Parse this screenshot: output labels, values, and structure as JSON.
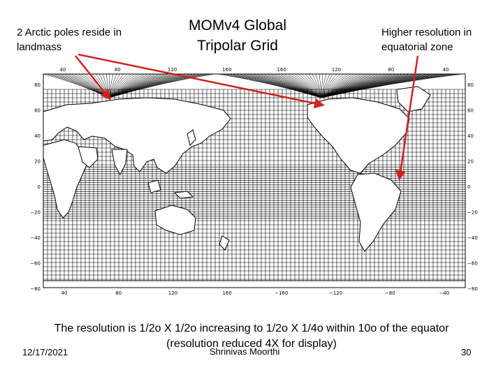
{
  "slide": {
    "title": "MOMv4 Global Tripolar Grid",
    "annotation_left": "2 Arctic poles reside in landmass",
    "annotation_right": "Higher resolution in equatorial zone",
    "caption_line1": "The resolution is 1/2o X 1/2o increasing to 1/2o X 1/4o within 10o of the equator",
    "caption_line2": "(resolution reduced 4X for display)",
    "footer": {
      "date": "12/17/2021",
      "author": "Shrinivas Moorthi",
      "page_number": "30"
    }
  },
  "map": {
    "top_ticks": [
      "40",
      "80",
      "120",
      "160",
      "160",
      "120",
      "80",
      "40"
    ],
    "bottom_ticks": [
      "40",
      "80",
      "120",
      "160",
      "−160",
      "−120",
      "−80",
      "−40"
    ],
    "left_ticks": [
      "80",
      "60",
      "40",
      "20",
      "0",
      "−20",
      "−40",
      "−60",
      "−80"
    ],
    "right_ticks": [
      "80",
      "60",
      "40",
      "20",
      "0",
      "−20",
      "−40",
      "−60",
      "−80"
    ],
    "colors": {
      "grid": "#000000",
      "arrows": "#d42020",
      "land": "#ffffff"
    }
  }
}
